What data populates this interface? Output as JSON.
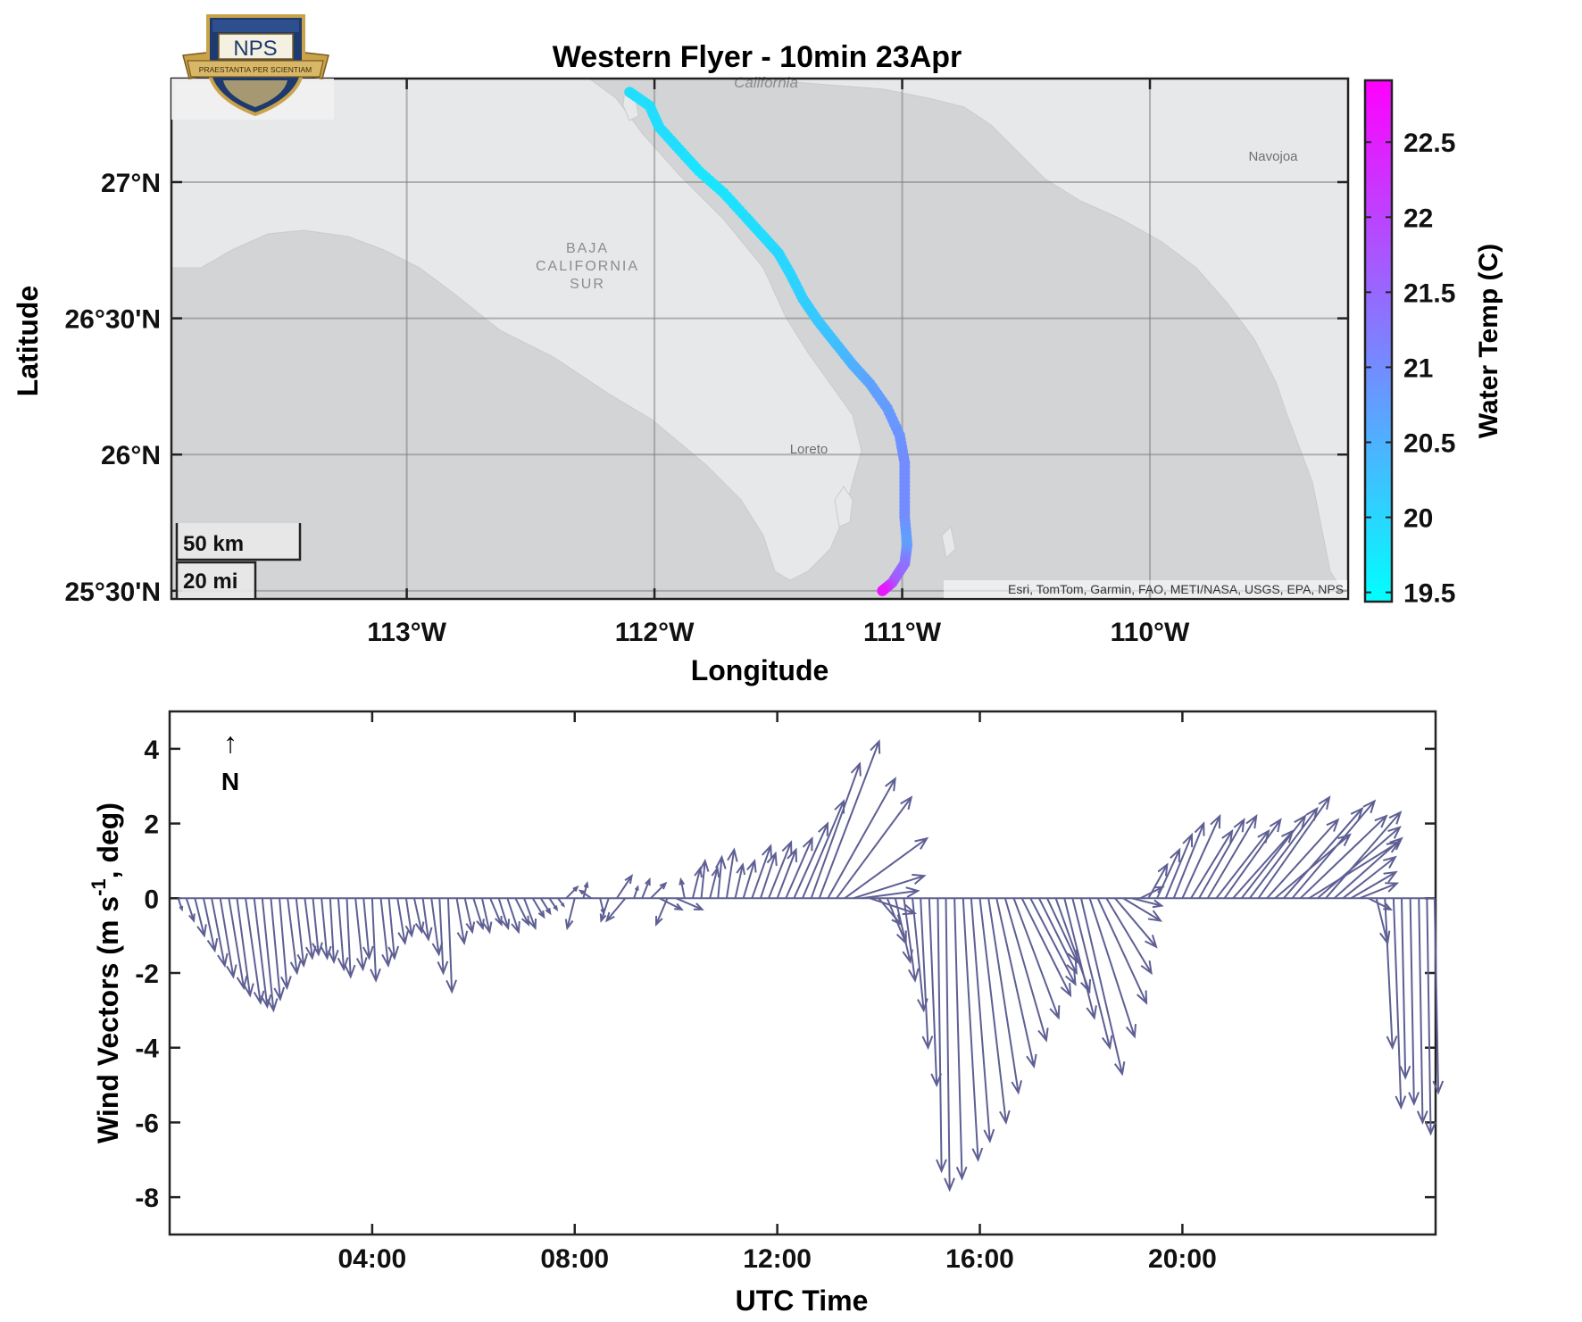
{
  "logo": {
    "text": "NPS",
    "motto": "PRAESTANTIA PER SCIENTIAM"
  },
  "map": {
    "title": "Western Flyer - 10min 23Apr",
    "xlabel": "Longitude",
    "ylabel": "Latitude",
    "lon_ticks": [
      {
        "value": -113,
        "label": "113°W"
      },
      {
        "value": -112,
        "label": "112°W"
      },
      {
        "value": -111,
        "label": "111°W"
      },
      {
        "value": -110,
        "label": "110°W"
      }
    ],
    "lat_ticks": [
      {
        "value": 25.5,
        "label": "25°30'N"
      },
      {
        "value": 26.0,
        "label": "26°N"
      },
      {
        "value": 26.5,
        "label": "26°30'N"
      },
      {
        "value": 27.0,
        "label": "27°N"
      }
    ],
    "lon_range": [
      -113.95,
      -109.2
    ],
    "lat_range": [
      25.47,
      27.38
    ],
    "place_labels": {
      "baja_line1": "BAJA",
      "baja_line2": "CALIFORNIA",
      "baja_line3": "SUR",
      "loreto": "Loreto",
      "navojoa": "Navojoa",
      "california": "California"
    },
    "scalebar": {
      "km_label": "50 km",
      "mi_label": "20 mi"
    },
    "attribution": "Esri, TomTom, Garmin, FAO, METI/NASA, USGS, EPA, NPS",
    "colorbar": {
      "label": "Water Temp (C)",
      "range": [
        19.45,
        22.9
      ],
      "ticks": [
        {
          "value": 19.5,
          "label": "19.5"
        },
        {
          "value": 20.0,
          "label": "20"
        },
        {
          "value": 20.5,
          "label": "20.5"
        },
        {
          "value": 21.0,
          "label": "21"
        },
        {
          "value": 21.5,
          "label": "21.5"
        },
        {
          "value": 22.0,
          "label": "22"
        },
        {
          "value": 22.5,
          "label": "22.5"
        }
      ],
      "color_low": "#00ffff",
      "color_high": "#ff00ff"
    }
  },
  "chart_data": [
    {
      "type": "scatter",
      "title": "Western Flyer - 10min 23Apr",
      "xlabel": "Longitude",
      "ylabel": "Latitude",
      "color_variable": "Water Temp (C)",
      "track": [
        {
          "lon": -112.1,
          "lat": 27.33,
          "temp": 19.9
        },
        {
          "lon": -112.02,
          "lat": 27.28,
          "temp": 19.9
        },
        {
          "lon": -111.98,
          "lat": 27.2,
          "temp": 19.9
        },
        {
          "lon": -111.9,
          "lat": 27.12,
          "temp": 19.9
        },
        {
          "lon": -111.82,
          "lat": 27.04,
          "temp": 19.8
        },
        {
          "lon": -111.72,
          "lat": 26.96,
          "temp": 19.8
        },
        {
          "lon": -111.63,
          "lat": 26.87,
          "temp": 19.9
        },
        {
          "lon": -111.56,
          "lat": 26.8,
          "temp": 19.9
        },
        {
          "lon": -111.5,
          "lat": 26.74,
          "temp": 20.0
        },
        {
          "lon": -111.45,
          "lat": 26.66,
          "temp": 20.0
        },
        {
          "lon": -111.4,
          "lat": 26.57,
          "temp": 20.1
        },
        {
          "lon": -111.34,
          "lat": 26.49,
          "temp": 20.2
        },
        {
          "lon": -111.27,
          "lat": 26.41,
          "temp": 20.3
        },
        {
          "lon": -111.2,
          "lat": 26.33,
          "temp": 20.5
        },
        {
          "lon": -111.13,
          "lat": 26.26,
          "temp": 20.7
        },
        {
          "lon": -111.06,
          "lat": 26.17,
          "temp": 20.8
        },
        {
          "lon": -111.01,
          "lat": 26.07,
          "temp": 20.9
        },
        {
          "lon": -110.99,
          "lat": 25.97,
          "temp": 21.0
        },
        {
          "lon": -110.99,
          "lat": 25.87,
          "temp": 21.0
        },
        {
          "lon": -110.99,
          "lat": 25.77,
          "temp": 21.0
        },
        {
          "lon": -110.98,
          "lat": 25.67,
          "temp": 20.7
        },
        {
          "lon": -110.99,
          "lat": 25.6,
          "temp": 21.3
        },
        {
          "lon": -111.04,
          "lat": 25.53,
          "temp": 21.7
        },
        {
          "lon": -111.08,
          "lat": 25.5,
          "temp": 22.6
        }
      ]
    },
    {
      "type": "line",
      "subtype": "quiver",
      "ylabel_main": "Wind Vectors (m s",
      "ylabel_sup": "-1",
      "ylabel_tail": ", deg)",
      "xlabel": "UTC Time",
      "north_arrow": "↑",
      "north_label": "N",
      "arrow_color": "#5e5f93",
      "x_unit": "hour",
      "xlim": [
        0,
        25.0
      ],
      "ylim": [
        -9,
        5
      ],
      "x_ticks": [
        {
          "value": 4,
          "label": "04:00"
        },
        {
          "value": 8,
          "label": "08:00"
        },
        {
          "value": 12,
          "label": "12:00"
        },
        {
          "value": 16,
          "label": "16:00"
        },
        {
          "value": 20,
          "label": "20:00"
        }
      ],
      "y_ticks": [
        {
          "value": 4,
          "label": "4"
        },
        {
          "value": 2,
          "label": "2"
        },
        {
          "value": 0,
          "label": "0"
        },
        {
          "value": -2,
          "label": "-2"
        },
        {
          "value": -4,
          "label": "-4"
        },
        {
          "value": -6,
          "label": "-6"
        },
        {
          "value": -8,
          "label": "-8"
        }
      ],
      "vectors": [
        {
          "t": 0.17,
          "u": 0.1,
          "v": -0.3
        },
        {
          "t": 0.33,
          "u": 0.2,
          "v": -0.6
        },
        {
          "t": 0.5,
          "u": 0.25,
          "v": -1.0
        },
        {
          "t": 0.67,
          "u": 0.3,
          "v": -1.4
        },
        {
          "t": 0.83,
          "u": 0.35,
          "v": -1.8
        },
        {
          "t": 1.0,
          "u": 0.35,
          "v": -2.1
        },
        {
          "t": 1.17,
          "u": 0.4,
          "v": -2.4
        },
        {
          "t": 1.33,
          "u": 0.35,
          "v": -2.6
        },
        {
          "t": 1.5,
          "u": 0.4,
          "v": -2.8
        },
        {
          "t": 1.67,
          "u": 0.35,
          "v": -2.9
        },
        {
          "t": 1.83,
          "u": 0.3,
          "v": -3.0
        },
        {
          "t": 2.0,
          "u": 0.25,
          "v": -2.7
        },
        {
          "t": 2.17,
          "u": 0.2,
          "v": -2.4
        },
        {
          "t": 2.33,
          "u": 0.25,
          "v": -2.0
        },
        {
          "t": 2.5,
          "u": 0.2,
          "v": -1.8
        },
        {
          "t": 2.67,
          "u": 0.2,
          "v": -1.6
        },
        {
          "t": 2.83,
          "u": 0.15,
          "v": -1.5
        },
        {
          "t": 3.0,
          "u": 0.15,
          "v": -1.6
        },
        {
          "t": 3.17,
          "u": 0.1,
          "v": -1.7
        },
        {
          "t": 3.33,
          "u": 0.15,
          "v": -1.9
        },
        {
          "t": 3.5,
          "u": 0.1,
          "v": -2.1
        },
        {
          "t": 3.67,
          "u": 0.2,
          "v": -1.9
        },
        {
          "t": 3.83,
          "u": 0.15,
          "v": -1.6
        },
        {
          "t": 4.0,
          "u": 0.1,
          "v": -2.2
        },
        {
          "t": 4.17,
          "u": 0.2,
          "v": -1.8
        },
        {
          "t": 4.33,
          "u": 0.15,
          "v": -1.6
        },
        {
          "t": 4.5,
          "u": 0.2,
          "v": -1.2
        },
        {
          "t": 4.67,
          "u": 0.15,
          "v": -1.0
        },
        {
          "t": 4.83,
          "u": 0.2,
          "v": -0.9
        },
        {
          "t": 5.0,
          "u": 0.15,
          "v": -1.1
        },
        {
          "t": 5.17,
          "u": 0.2,
          "v": -1.5
        },
        {
          "t": 5.33,
          "u": 0.1,
          "v": -2.0
        },
        {
          "t": 5.5,
          "u": 0.1,
          "v": -2.5
        },
        {
          "t": 5.67,
          "u": 0.2,
          "v": -1.2
        },
        {
          "t": 5.83,
          "u": 0.2,
          "v": -0.9
        },
        {
          "t": 6.0,
          "u": 0.25,
          "v": -0.8
        },
        {
          "t": 6.17,
          "u": 0.2,
          "v": -0.9
        },
        {
          "t": 6.33,
          "u": 0.3,
          "v": -0.7
        },
        {
          "t": 6.5,
          "u": 0.25,
          "v": -0.8
        },
        {
          "t": 6.67,
          "u": 0.3,
          "v": -0.9
        },
        {
          "t": 6.83,
          "u": 0.35,
          "v": -0.7
        },
        {
          "t": 7.0,
          "u": 0.3,
          "v": -0.8
        },
        {
          "t": 7.17,
          "u": 0.3,
          "v": -0.5
        },
        {
          "t": 7.33,
          "u": 0.25,
          "v": -0.4
        },
        {
          "t": 7.5,
          "u": 0.2,
          "v": -0.3
        },
        {
          "t": 7.67,
          "u": 0.15,
          "v": -0.2
        },
        {
          "t": 7.83,
          "u": 0.3,
          "v": 0.3
        },
        {
          "t": 8.0,
          "u": -0.2,
          "v": -0.8
        },
        {
          "t": 8.17,
          "u": 0.1,
          "v": 0.4
        },
        {
          "t": 8.33,
          "u": -0.3,
          "v": 0.2
        },
        {
          "t": 8.5,
          "u": 0.1,
          "v": -0.4
        },
        {
          "t": 8.67,
          "u": -0.2,
          "v": -0.6
        },
        {
          "t": 8.83,
          "u": 0.4,
          "v": 0.6
        },
        {
          "t": 9.0,
          "u": -0.5,
          "v": -0.6
        },
        {
          "t": 9.17,
          "u": 0.1,
          "v": 0.3
        },
        {
          "t": 9.33,
          "u": 0.2,
          "v": 0.5
        },
        {
          "t": 9.5,
          "u": 0.4,
          "v": 0.4
        },
        {
          "t": 9.67,
          "u": 0.6,
          "v": -0.3
        },
        {
          "t": 9.83,
          "u": -0.3,
          "v": -0.7
        },
        {
          "t": 10.0,
          "u": 0.7,
          "v": -0.3
        },
        {
          "t": 10.17,
          "u": -0.1,
          "v": 0.5
        },
        {
          "t": 10.33,
          "u": 0.2,
          "v": 0.8
        },
        {
          "t": 10.5,
          "u": 0.1,
          "v": 1.0
        },
        {
          "t": 10.67,
          "u": 0.2,
          "v": 0.8
        },
        {
          "t": 10.83,
          "u": 0.1,
          "v": 1.1
        },
        {
          "t": 11.0,
          "u": 0.2,
          "v": 1.3
        },
        {
          "t": 11.17,
          "u": 0.2,
          "v": 0.9
        },
        {
          "t": 11.33,
          "u": 0.3,
          "v": 1.0
        },
        {
          "t": 11.5,
          "u": 0.5,
          "v": 1.4
        },
        {
          "t": 11.67,
          "u": 0.4,
          "v": 1.2
        },
        {
          "t": 11.83,
          "u": 0.6,
          "v": 1.5
        },
        {
          "t": 12.0,
          "u": 0.5,
          "v": 1.3
        },
        {
          "t": 12.17,
          "u": 0.7,
          "v": 1.6
        },
        {
          "t": 12.33,
          "u": 0.9,
          "v": 2.0
        },
        {
          "t": 12.5,
          "u": 1.1,
          "v": 2.6
        },
        {
          "t": 12.67,
          "u": 1.3,
          "v": 3.6
        },
        {
          "t": 12.83,
          "u": 1.6,
          "v": 4.2
        },
        {
          "t": 13.0,
          "u": 1.8,
          "v": 3.2
        },
        {
          "t": 13.17,
          "u": 2.0,
          "v": 2.7
        },
        {
          "t": 13.33,
          "u": 2.2,
          "v": 1.6
        },
        {
          "t": 13.5,
          "u": 1.9,
          "v": 0.6
        },
        {
          "t": 13.67,
          "u": 1.5,
          "v": 0.2
        },
        {
          "t": 13.83,
          "u": 1.2,
          "v": -0.4
        },
        {
          "t": 14.0,
          "u": 0.6,
          "v": -0.7
        },
        {
          "t": 14.17,
          "u": 0.5,
          "v": -1.2
        },
        {
          "t": 14.33,
          "u": 0.4,
          "v": -1.7
        },
        {
          "t": 14.5,
          "u": 0.3,
          "v": -2.2
        },
        {
          "t": 14.67,
          "u": 0.3,
          "v": -3.0
        },
        {
          "t": 14.83,
          "u": 0.2,
          "v": -4.0
        },
        {
          "t": 15.0,
          "u": 0.2,
          "v": -5.0
        },
        {
          "t": 15.17,
          "u": 0.1,
          "v": -7.3
        },
        {
          "t": 15.33,
          "u": 0.1,
          "v": -7.8
        },
        {
          "t": 15.5,
          "u": 0.2,
          "v": -7.5
        },
        {
          "t": 15.67,
          "u": 0.4,
          "v": -7.0
        },
        {
          "t": 15.83,
          "u": 0.5,
          "v": -6.5
        },
        {
          "t": 16.0,
          "u": 0.7,
          "v": -6.0
        },
        {
          "t": 16.17,
          "u": 0.8,
          "v": -5.2
        },
        {
          "t": 16.33,
          "u": 1.0,
          "v": -4.5
        },
        {
          "t": 16.5,
          "u": 1.1,
          "v": -3.8
        },
        {
          "t": 16.67,
          "u": 1.2,
          "v": -3.2
        },
        {
          "t": 16.83,
          "u": 1.3,
          "v": -2.6
        },
        {
          "t": 17.0,
          "u": 1.2,
          "v": -2.3
        },
        {
          "t": 17.17,
          "u": 1.0,
          "v": -2.0
        },
        {
          "t": 17.33,
          "u": 0.8,
          "v": -1.7
        },
        {
          "t": 17.5,
          "u": 0.9,
          "v": -2.5
        },
        {
          "t": 17.67,
          "u": 0.8,
          "v": -3.2
        },
        {
          "t": 17.83,
          "u": 1.0,
          "v": -4.0
        },
        {
          "t": 18.0,
          "u": 1.1,
          "v": -4.7
        },
        {
          "t": 18.17,
          "u": 1.2,
          "v": -3.7
        },
        {
          "t": 18.33,
          "u": 1.3,
          "v": -2.8
        },
        {
          "t": 18.5,
          "u": 1.2,
          "v": -2.0
        },
        {
          "t": 18.67,
          "u": 1.1,
          "v": -1.3
        },
        {
          "t": 18.83,
          "u": 1.0,
          "v": -0.6
        },
        {
          "t": 19.0,
          "u": 0.8,
          "v": -0.2
        },
        {
          "t": 19.17,
          "u": 0.6,
          "v": 0.3
        },
        {
          "t": 19.33,
          "u": 0.5,
          "v": 0.9
        },
        {
          "t": 19.5,
          "u": 0.6,
          "v": 1.3
        },
        {
          "t": 19.67,
          "u": 0.7,
          "v": 1.7
        },
        {
          "t": 19.83,
          "u": 0.8,
          "v": 2.0
        },
        {
          "t": 20.0,
          "u": 1.0,
          "v": 2.2
        },
        {
          "t": 20.17,
          "u": 1.1,
          "v": 1.8
        },
        {
          "t": 20.33,
          "u": 1.2,
          "v": 2.1
        },
        {
          "t": 20.5,
          "u": 1.3,
          "v": 2.2
        },
        {
          "t": 20.67,
          "u": 1.4,
          "v": 1.8
        },
        {
          "t": 20.83,
          "u": 1.5,
          "v": 2.1
        },
        {
          "t": 21.0,
          "u": 1.6,
          "v": 1.8
        },
        {
          "t": 21.17,
          "u": 1.7,
          "v": 2.2
        },
        {
          "t": 21.33,
          "u": 1.8,
          "v": 2.4
        },
        {
          "t": 21.5,
          "u": 1.9,
          "v": 2.7
        },
        {
          "t": 21.67,
          "u": 1.9,
          "v": 2.1
        },
        {
          "t": 21.83,
          "u": 2.0,
          "v": 1.7
        },
        {
          "t": 22.0,
          "u": 2.1,
          "v": 2.4
        },
        {
          "t": 22.17,
          "u": 2.2,
          "v": 2.6
        },
        {
          "t": 22.33,
          "u": 2.3,
          "v": 2.2
        },
        {
          "t": 22.5,
          "u": 2.4,
          "v": 1.5
        },
        {
          "t": 22.67,
          "u": 2.2,
          "v": 1.9
        },
        {
          "t": 22.83,
          "u": 2.0,
          "v": 2.3
        },
        {
          "t": 23.0,
          "u": 1.8,
          "v": 1.6
        },
        {
          "t": 23.17,
          "u": 1.4,
          "v": 1.1
        },
        {
          "t": 23.33,
          "u": 1.2,
          "v": 0.7
        },
        {
          "t": 23.5,
          "u": 1.0,
          "v": 0.4
        },
        {
          "t": 23.67,
          "u": 0.6,
          "v": -0.3
        },
        {
          "t": 23.83,
          "u": 0.3,
          "v": -1.2
        },
        {
          "t": 24.0,
          "u": 0.2,
          "v": -4.0
        },
        {
          "t": 24.17,
          "u": 0.2,
          "v": -5.6
        },
        {
          "t": 24.33,
          "u": 0.1,
          "v": -4.8
        },
        {
          "t": 24.5,
          "u": 0.1,
          "v": -5.5
        },
        {
          "t": 24.67,
          "u": 0.1,
          "v": -6.0
        },
        {
          "t": 24.83,
          "u": 0.1,
          "v": -6.3
        },
        {
          "t": 24.98,
          "u": 0.1,
          "v": -5.2
        }
      ]
    }
  ]
}
